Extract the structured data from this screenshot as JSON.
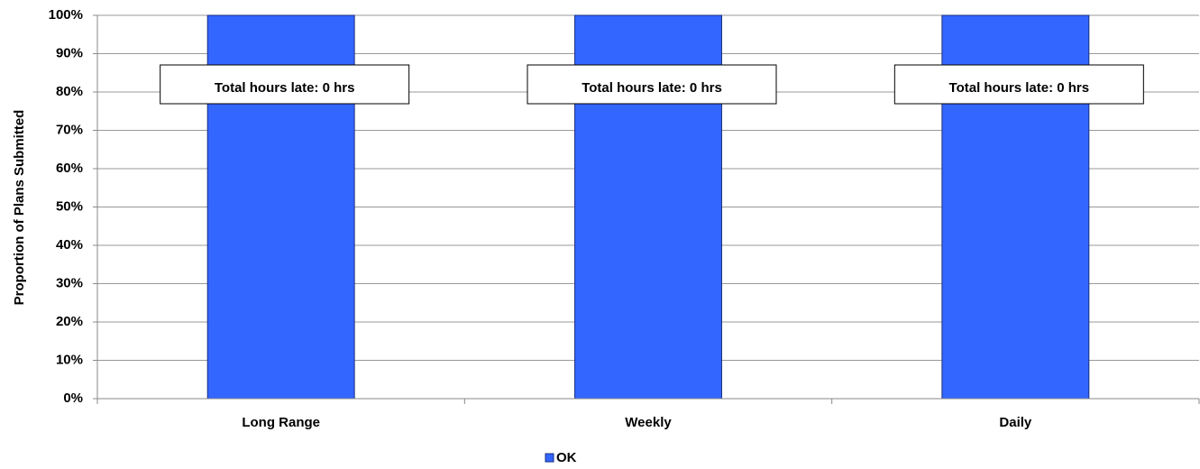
{
  "chart_data": {
    "type": "bar",
    "y_axis_label": "Proportion of Plans Submitted",
    "categories": [
      "Long Range",
      "Weekly",
      "Daily"
    ],
    "series": [
      {
        "name": "OK",
        "color": "#3366ff",
        "values": [
          100,
          100,
          100
        ]
      }
    ],
    "annotations": [
      "Total hours late: 0 hrs",
      "Total hours late: 0 hrs",
      "Total hours late: 0 hrs"
    ],
    "ylim": [
      0,
      100
    ],
    "yticks": [
      {
        "value": 0,
        "label": "0%"
      },
      {
        "value": 10,
        "label": "10%"
      },
      {
        "value": 20,
        "label": "20%"
      },
      {
        "value": 30,
        "label": "30%"
      },
      {
        "value": 40,
        "label": "40%"
      },
      {
        "value": 50,
        "label": "50%"
      },
      {
        "value": 60,
        "label": "60%"
      },
      {
        "value": 70,
        "label": "70%"
      },
      {
        "value": 80,
        "label": "80%"
      },
      {
        "value": 90,
        "label": "90%"
      },
      {
        "value": 100,
        "label": "100%"
      }
    ],
    "grid": true,
    "legend": "bottom"
  }
}
